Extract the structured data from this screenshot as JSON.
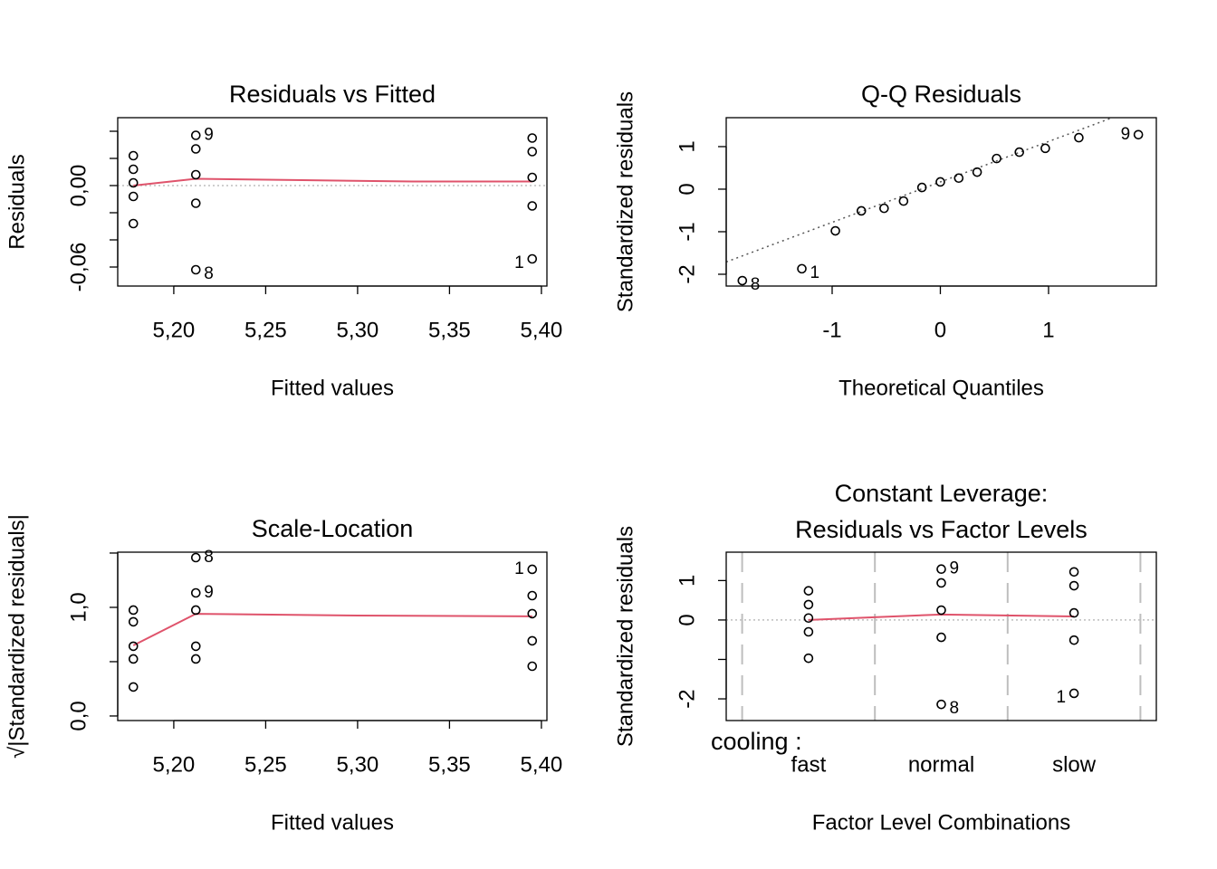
{
  "chart_data": [
    {
      "type": "scatter",
      "title": "Residuals vs Fitted",
      "xlabel": "Fitted values",
      "ylabel": "Residuals",
      "x": [
        5.178,
        5.178,
        5.178,
        5.178,
        5.178,
        5.212,
        5.212,
        5.212,
        5.212,
        5.212,
        5.395,
        5.395,
        5.395,
        5.395,
        5.395
      ],
      "values": [
        0.022,
        0.012,
        0.002,
        -0.008,
        -0.028,
        0.037,
        0.027,
        0.008,
        -0.013,
        -0.062,
        0.035,
        0.025,
        0.006,
        -0.015,
        -0.054
      ],
      "point_labels": [
        null,
        null,
        null,
        null,
        null,
        "9",
        null,
        null,
        null,
        "8",
        null,
        null,
        null,
        null,
        "1"
      ],
      "xlim": [
        5.1695,
        5.403
      ],
      "ylim": [
        -0.074,
        0.05
      ],
      "xticks": [
        {
          "value": 5.2,
          "label": "5,20"
        },
        {
          "value": 5.25,
          "label": "5,25"
        },
        {
          "value": 5.3,
          "label": "5,30"
        },
        {
          "value": 5.35,
          "label": "5,35"
        },
        {
          "value": 5.4,
          "label": "5,40"
        }
      ],
      "yticks": [
        {
          "value": -0.06,
          "label": "-0,06"
        },
        {
          "value": 0,
          "label": "0,00"
        }
      ],
      "minor_yticks": [
        -0.04,
        -0.02,
        0.02,
        0.04
      ],
      "smooth": {
        "x": [
          5.178,
          5.212,
          5.27,
          5.33,
          5.395
        ],
        "values": [
          0,
          0.005,
          0.004,
          0.003,
          0.003
        ],
        "color": "#DF536B"
      },
      "reference_line": 0,
      "reference_color": "#BEBEBE",
      "point_color": "#000000"
    },
    {
      "type": "qq",
      "title": "Q-Q Residuals",
      "xlabel": "Theoretical Quantiles",
      "ylabel": "Standardized residuals",
      "x": [
        -1.83,
        -1.28,
        -0.97,
        -0.73,
        -0.52,
        -0.34,
        -0.17,
        0,
        0.17,
        0.34,
        0.52,
        0.73,
        0.97,
        1.28,
        1.83
      ],
      "values": [
        -2.15,
        -1.87,
        -0.98,
        -0.51,
        -0.45,
        -0.28,
        0.04,
        0.17,
        0.26,
        0.4,
        0.72,
        0.87,
        0.96,
        1.21,
        1.28
      ],
      "point_labels": [
        "8",
        "1",
        null,
        null,
        null,
        null,
        null,
        null,
        null,
        null,
        null,
        null,
        null,
        null,
        "9"
      ],
      "xlim": [
        -1.979,
        1.996
      ],
      "ylim": [
        -2.277,
        1.68
      ],
      "xticks": [
        -1,
        0,
        1
      ],
      "yticks": [
        -2,
        -1,
        0,
        1
      ],
      "qq_line": {
        "intercept": 0.17,
        "slope": 0.95,
        "color": "#555555"
      },
      "point_color": "#000000"
    },
    {
      "type": "scatter",
      "title": "Scale-Location",
      "xlabel": "Fitted values",
      "ylabel": "√|Standardized residuals|",
      "x": [
        5.178,
        5.178,
        5.178,
        5.178,
        5.178,
        5.212,
        5.212,
        5.212,
        5.212,
        5.212,
        5.395,
        5.395,
        5.395,
        5.395,
        5.395
      ],
      "values": [
        0.975,
        0.867,
        0.642,
        0.525,
        0.267,
        1.458,
        1.133,
        0.975,
        0.642,
        0.525,
        1.35,
        1.108,
        0.942,
        0.692,
        0.458
      ],
      "point_labels": [
        null,
        null,
        null,
        null,
        null,
        "8",
        "9",
        null,
        null,
        null,
        "1",
        null,
        null,
        null,
        null
      ],
      "xlim": [
        5.1695,
        5.403
      ],
      "ylim": [
        -0.042,
        1.508
      ],
      "xticks": [
        {
          "value": 5.2,
          "label": "5,20"
        },
        {
          "value": 5.25,
          "label": "5,25"
        },
        {
          "value": 5.3,
          "label": "5,30"
        },
        {
          "value": 5.35,
          "label": "5,35"
        },
        {
          "value": 5.4,
          "label": "5,40"
        }
      ],
      "yticks": [
        {
          "value": 0,
          "label": "0,0"
        },
        {
          "value": 1,
          "label": "1,0"
        }
      ],
      "minor_yticks": [
        0.5,
        1.5
      ],
      "smooth": {
        "x": [
          5.178,
          5.212,
          5.3,
          5.395
        ],
        "values": [
          0.65,
          0.94,
          0.925,
          0.917
        ],
        "color": "#DF536B"
      },
      "point_color": "#000000"
    },
    {
      "type": "factor",
      "title": [
        "Constant Leverage:",
        "Residuals vs Factor Levels"
      ],
      "xlabel": "Factor Level Combinations",
      "ylabel": "Standardized residuals",
      "factor_label": "cooling :",
      "categories": [
        "fast",
        "normal",
        "slow"
      ],
      "values": [
        [
          0.74,
          0.39,
          0.05,
          -0.3,
          -0.97
        ],
        [
          1.29,
          0.94,
          0.25,
          -0.44,
          -2.14
        ],
        [
          1.22,
          0.87,
          0.18,
          -0.51,
          -1.86
        ]
      ],
      "point_labels": [
        [
          null,
          null,
          null,
          null,
          null
        ],
        [
          "9",
          null,
          null,
          null,
          "8"
        ],
        [
          null,
          null,
          null,
          null,
          "1"
        ]
      ],
      "ylim": [
        -2.55,
        1.72
      ],
      "yticks": [
        -2,
        0,
        1
      ],
      "minor_yticks": [
        -1
      ],
      "smooth": {
        "values": [
          0,
          0.14,
          0.09
        ],
        "color": "#DF536B"
      },
      "reference_line": 0,
      "reference_color": "#BEBEBE",
      "divider_color": "#BEBEBE",
      "point_color": "#000000"
    }
  ]
}
